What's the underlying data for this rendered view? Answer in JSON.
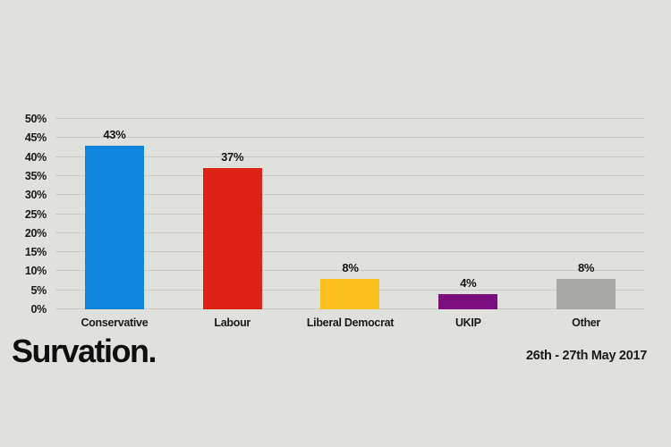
{
  "page": {
    "background_color": "#e0e1dc",
    "text_color": "#1a1a1a"
  },
  "branding": {
    "logo_text": "Survation.",
    "date_range": "26th - 27th May 2017"
  },
  "chart_data": {
    "type": "bar",
    "title": "",
    "categories": [
      "Conservative",
      "Labour",
      "Liberal Democrat",
      "UKIP",
      "Other"
    ],
    "values": [
      43,
      37,
      8,
      4,
      8
    ],
    "value_labels": [
      "43%",
      "37%",
      "8%",
      "4%",
      "8%"
    ],
    "bar_colors": [
      "#0d86db",
      "#dd2112",
      "#fcc01e",
      "#7a0e7c",
      "#a8a8a6"
    ],
    "xlabel": "",
    "ylabel": "",
    "ylim": [
      0,
      50
    ],
    "ytick_step": 5,
    "ytick_labels": [
      "0%",
      "5%",
      "10%",
      "15%",
      "20%",
      "25%",
      "30%",
      "35%",
      "40%",
      "45%",
      "50%"
    ],
    "grid": true,
    "gridline_color": "#c9cac4",
    "legend": "none"
  }
}
